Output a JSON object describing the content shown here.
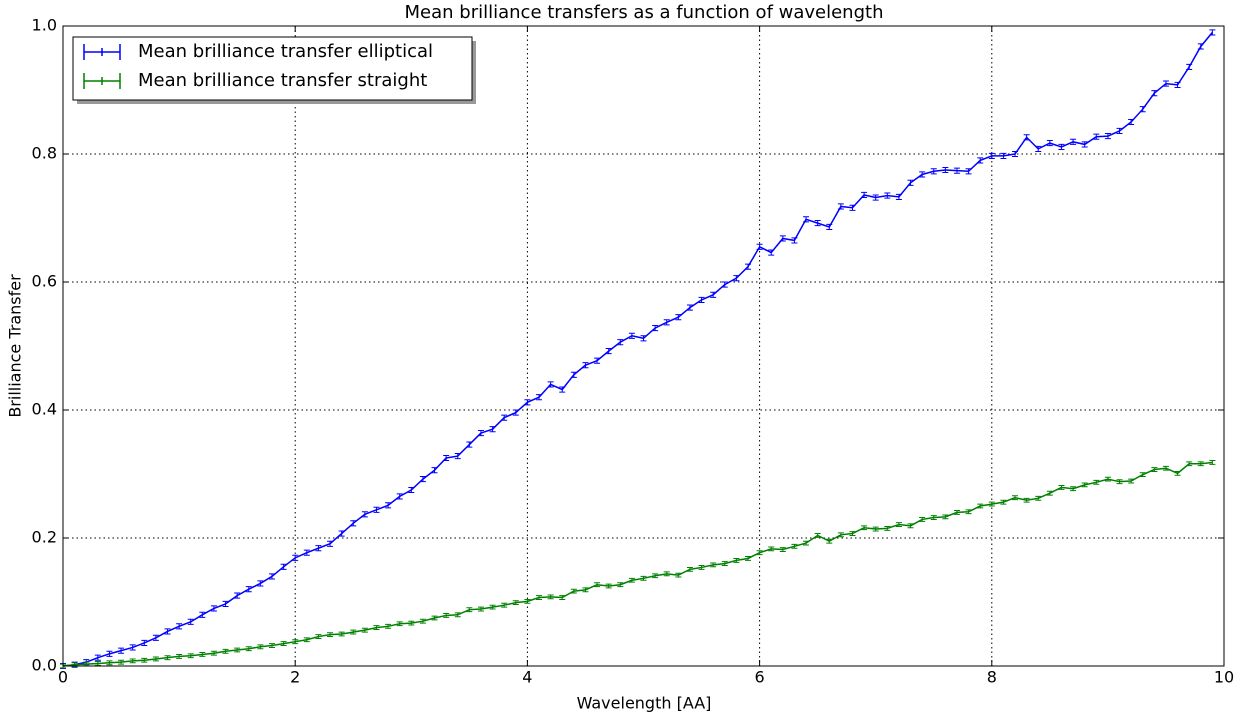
{
  "chart_data": {
    "type": "errorbar_line",
    "title": "Mean brilliance transfers as a function of wavelength",
    "xlabel": "Wavelength [AA]",
    "ylabel": "Brilliance Transfer",
    "x": [
      0,
      0.1,
      0.2,
      0.3,
      0.4,
      0.5,
      0.6,
      0.7,
      0.8,
      0.9,
      1,
      1.1,
      1.2,
      1.3,
      1.4,
      1.5,
      1.6,
      1.7,
      1.8,
      1.9,
      2,
      2.1,
      2.2,
      2.3,
      2.4,
      2.5,
      2.6,
      2.7,
      2.8,
      2.9,
      3,
      3.1,
      3.2,
      3.3,
      3.4,
      3.5,
      3.6,
      3.7,
      3.8,
      3.9,
      4,
      4.1,
      4.2,
      4.3,
      4.4,
      4.5,
      4.6,
      4.7,
      4.8,
      4.9,
      5,
      5.1,
      5.2,
      5.3,
      5.4,
      5.5,
      5.6,
      5.7,
      5.8,
      5.9,
      6,
      6.1,
      6.2,
      6.3,
      6.4,
      6.5,
      6.6,
      6.7,
      6.8,
      6.9,
      7,
      7.1,
      7.2,
      7.3,
      7.4,
      7.5,
      7.6,
      7.7,
      7.8,
      7.9,
      8,
      8.1,
      8.2,
      8.3,
      8.4,
      8.5,
      8.6,
      8.7,
      8.8,
      8.9,
      9,
      9.1,
      9.2,
      9.3,
      9.4,
      9.5,
      9.6,
      9.7,
      9.8,
      9.9
    ],
    "series": [
      {
        "name": "Mean brilliance transfer elliptical",
        "color": "#0000ff",
        "error": 0.004,
        "values": [
          0,
          0.002,
          0.006,
          0.013,
          0.019,
          0.024,
          0.029,
          0.036,
          0.044,
          0.054,
          0.062,
          0.069,
          0.08,
          0.09,
          0.097,
          0.11,
          0.12,
          0.129,
          0.14,
          0.155,
          0.169,
          0.177,
          0.184,
          0.191,
          0.207,
          0.223,
          0.237,
          0.244,
          0.251,
          0.265,
          0.275,
          0.292,
          0.306,
          0.325,
          0.328,
          0.346,
          0.364,
          0.37,
          0.388,
          0.396,
          0.412,
          0.42,
          0.44,
          0.432,
          0.455,
          0.47,
          0.477,
          0.492,
          0.506,
          0.516,
          0.512,
          0.528,
          0.537,
          0.545,
          0.56,
          0.572,
          0.58,
          0.596,
          0.606,
          0.624,
          0.655,
          0.646,
          0.668,
          0.665,
          0.698,
          0.692,
          0.686,
          0.718,
          0.716,
          0.736,
          0.732,
          0.735,
          0.733,
          0.755,
          0.768,
          0.773,
          0.775,
          0.774,
          0.773,
          0.79,
          0.797,
          0.797,
          0.8,
          0.826,
          0.808,
          0.817,
          0.811,
          0.819,
          0.815,
          0.827,
          0.828,
          0.836,
          0.85,
          0.87,
          0.895,
          0.91,
          0.908,
          0.936,
          0.968,
          0.99
        ]
      },
      {
        "name": "Mean brilliance transfer straight",
        "color": "#008000",
        "error": 0.003,
        "values": [
          0,
          0.002,
          0.003,
          0.004,
          0.005,
          0.006,
          0.008,
          0.009,
          0.011,
          0.013,
          0.015,
          0.016,
          0.018,
          0.02,
          0.023,
          0.025,
          0.027,
          0.03,
          0.032,
          0.035,
          0.038,
          0.041,
          0.046,
          0.049,
          0.05,
          0.053,
          0.056,
          0.06,
          0.062,
          0.066,
          0.067,
          0.07,
          0.075,
          0.079,
          0.08,
          0.088,
          0.089,
          0.092,
          0.095,
          0.099,
          0.101,
          0.107,
          0.108,
          0.107,
          0.117,
          0.119,
          0.127,
          0.125,
          0.127,
          0.134,
          0.137,
          0.141,
          0.144,
          0.142,
          0.151,
          0.154,
          0.158,
          0.16,
          0.165,
          0.168,
          0.177,
          0.183,
          0.182,
          0.187,
          0.192,
          0.204,
          0.195,
          0.205,
          0.207,
          0.216,
          0.214,
          0.215,
          0.221,
          0.219,
          0.229,
          0.232,
          0.233,
          0.24,
          0.241,
          0.25,
          0.253,
          0.256,
          0.263,
          0.259,
          0.262,
          0.27,
          0.279,
          0.277,
          0.283,
          0.287,
          0.292,
          0.288,
          0.289,
          0.299,
          0.307,
          0.309,
          0.301,
          0.316,
          0.316,
          0.318
        ]
      }
    ],
    "xlim": [
      0,
      10
    ],
    "xticks": [
      0,
      2,
      4,
      6,
      8,
      10
    ],
    "ylim": [
      0,
      1
    ],
    "yticks": [
      {
        "value": 0,
        "label": "0.0"
      },
      0.2,
      0.4,
      0.6,
      0.8,
      {
        "value": 1,
        "label": "1.0"
      }
    ],
    "grid": true,
    "legend": "upper left"
  }
}
